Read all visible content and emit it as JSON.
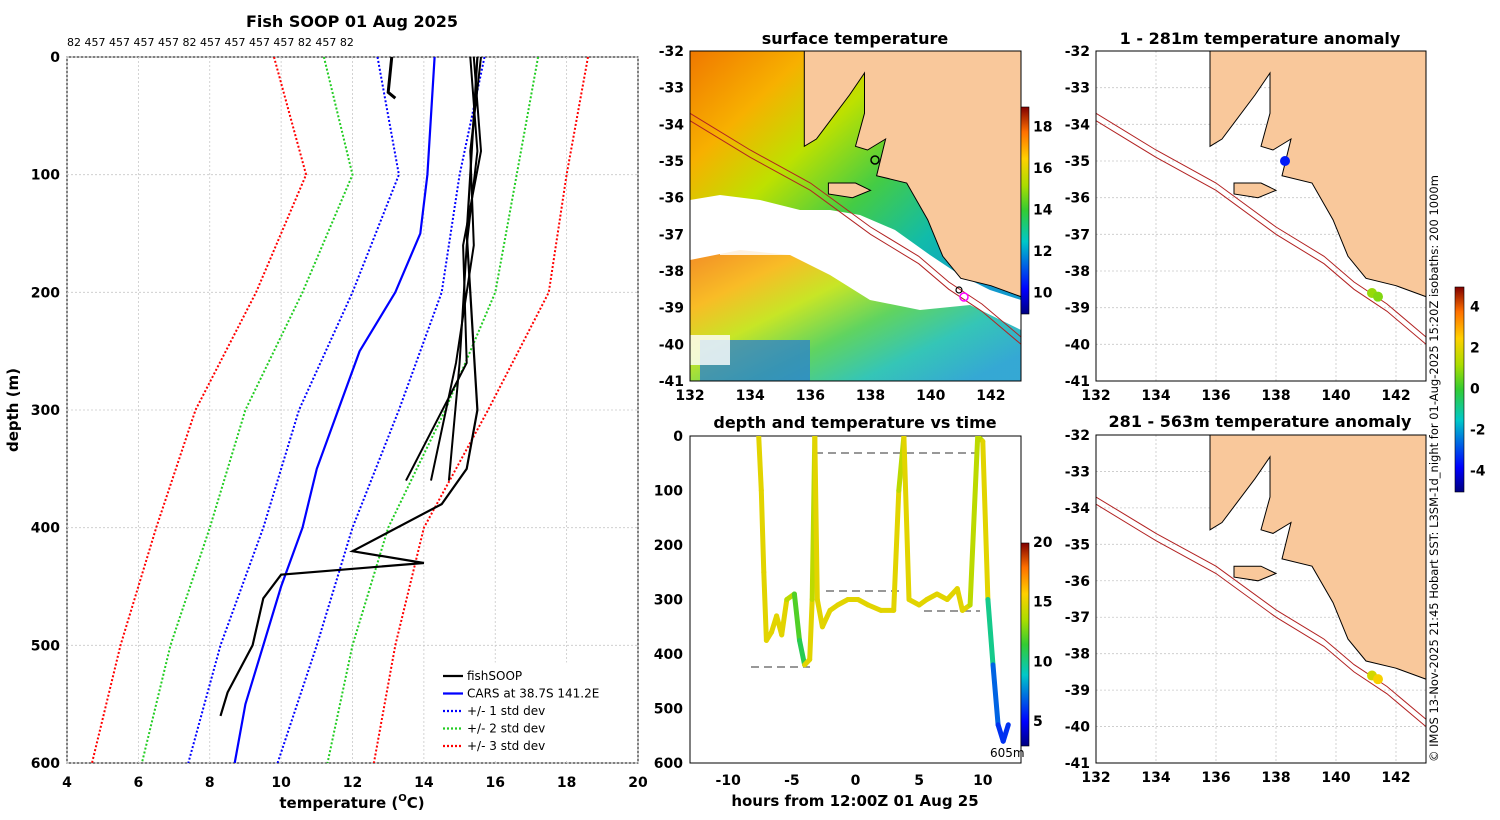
{
  "profile": {
    "title": "Fish SOOP 01 Aug 2025",
    "top_labels": "82 457 457 457 457 82 457 457 457 457 82 457 82",
    "xlabel_main": "temperature (",
    "xlabel_sup": "O",
    "xlabel_end": "C)",
    "ylabel": "depth (m)",
    "xticks": [
      "4",
      "6",
      "8",
      "10",
      "12",
      "14",
      "16",
      "18",
      "20"
    ],
    "yticks": [
      "0",
      "100",
      "200",
      "300",
      "400",
      "500",
      "600"
    ],
    "xlim": [
      4,
      20
    ],
    "ylim": [
      0,
      600
    ],
    "legend": [
      {
        "label": "fishSOOP",
        "color": "#000000",
        "style": "solid"
      },
      {
        "label": "CARS at 38.7S 141.2E",
        "color": "#0000ff",
        "style": "solid"
      },
      {
        "label": "+/- 1 std dev",
        "color": "#0000ff",
        "style": "dotted"
      },
      {
        "label": "+/- 2 std dev",
        "color": "#22cc22",
        "style": "dotted"
      },
      {
        "label": "+/- 3 std dev",
        "color": "#ff0000",
        "style": "dotted"
      }
    ]
  },
  "chart_data": [
    {
      "type": "line",
      "title": "Fish SOOP 01 Aug 2025",
      "xlabel": "temperature (oC)",
      "ylabel": "depth (m)",
      "xlim": [
        4,
        20
      ],
      "ylim": [
        600,
        0
      ],
      "series": [
        {
          "name": "CARS at 38.7S 141.2E",
          "color": "#0000ff",
          "style": "solid",
          "depth": [
            0,
            50,
            100,
            150,
            200,
            250,
            300,
            350,
            400,
            450,
            500,
            550,
            600
          ],
          "temp": [
            14.3,
            14.2,
            14.1,
            13.9,
            13.2,
            12.2,
            11.6,
            11.0,
            10.6,
            10.0,
            9.5,
            9.0,
            8.7
          ]
        },
        {
          "name": "-1 std dev",
          "color": "#0000ff",
          "style": "dotted",
          "depth": [
            0,
            100,
            200,
            300,
            400,
            500,
            600
          ],
          "temp": [
            12.7,
            13.3,
            12.0,
            10.5,
            9.5,
            8.3,
            7.4
          ]
        },
        {
          "name": "+1 std dev",
          "color": "#0000ff",
          "style": "dotted",
          "depth": [
            0,
            100,
            200,
            300,
            400,
            500,
            600
          ],
          "temp": [
            15.7,
            15.0,
            14.5,
            13.3,
            12.0,
            11.0,
            9.9
          ]
        },
        {
          "name": "-2 std dev",
          "color": "#22cc22",
          "style": "dotted",
          "depth": [
            0,
            100,
            200,
            300,
            400,
            500,
            600
          ],
          "temp": [
            11.2,
            12.0,
            10.6,
            9.0,
            8.0,
            6.9,
            6.1
          ]
        },
        {
          "name": "+2 std dev",
          "color": "#22cc22",
          "style": "dotted",
          "depth": [
            0,
            100,
            200,
            300,
            400,
            500,
            600
          ],
          "temp": [
            17.2,
            16.6,
            16.0,
            14.6,
            13.0,
            12.0,
            11.3
          ]
        },
        {
          "name": "-3 std dev",
          "color": "#ff0000",
          "style": "dotted",
          "depth": [
            0,
            100,
            200,
            300,
            400,
            500,
            600
          ],
          "temp": [
            9.8,
            10.7,
            9.3,
            7.6,
            6.5,
            5.5,
            4.7
          ]
        },
        {
          "name": "+3 std dev",
          "color": "#ff0000",
          "style": "dotted",
          "depth": [
            0,
            100,
            200,
            300,
            400,
            500,
            600
          ],
          "temp": [
            18.6,
            18.0,
            17.5,
            15.8,
            14.0,
            13.2,
            12.6
          ]
        },
        {
          "name": "fishSOOP",
          "color": "#000000",
          "style": "solid",
          "depth": [
            0,
            50,
            100,
            150,
            200,
            250,
            300,
            350,
            380,
            420,
            430,
            440,
            460,
            500,
            540,
            560
          ],
          "temp": [
            15.5,
            15.4,
            15.3,
            15.2,
            15.3,
            15.4,
            15.5,
            15.2,
            14.5,
            12.0,
            14.0,
            10.0,
            9.5,
            9.2,
            8.5,
            8.3
          ]
        }
      ]
    },
    {
      "type": "heatmap",
      "title": "surface temperature",
      "xticks": [
        "132",
        "134",
        "136",
        "138",
        "140",
        "142"
      ],
      "yticks": [
        "-32",
        "-33",
        "-34",
        "-35",
        "-36",
        "-37",
        "-38",
        "-39",
        "-40",
        "-41"
      ],
      "xlim": [
        132,
        143
      ],
      "ylim": [
        -41,
        -32
      ],
      "colorbar": {
        "ticks": [
          "10",
          "12",
          "14",
          "16",
          "18"
        ],
        "range": [
          9,
          19
        ]
      }
    },
    {
      "type": "scatter",
      "title": "depth and temperature vs time",
      "xlabel": "hours from 12:00Z 01 Aug 25",
      "xticks": [
        "-10",
        "-5",
        "0",
        "5",
        "10"
      ],
      "yticks": [
        "0",
        "100",
        "200",
        "300",
        "400",
        "500",
        "600"
      ],
      "xlim": [
        -13,
        13
      ],
      "ylim": [
        600,
        0
      ],
      "max_depth_label": "605m",
      "colorbar": {
        "ticks": [
          "5",
          "10",
          "15",
          "20"
        ],
        "range": [
          3,
          20
        ]
      },
      "track_hours": [
        -7.6,
        -7.4,
        -7.2,
        -7.0,
        -6.6,
        -6.2,
        -5.8,
        -5.4,
        -4.8,
        -4.4,
        -4.0,
        -3.6,
        -3.4,
        -3.2,
        -3.0,
        -2.6,
        -2.0,
        -1.4,
        -0.6,
        0.2,
        1.0,
        2.0,
        3.0,
        3.4,
        3.8,
        4.2,
        5.0,
        5.6,
        6.4,
        7.2,
        8.0,
        8.4,
        9.0,
        9.6,
        10.0,
        10.4,
        10.8,
        11.2,
        11.6,
        12.0
      ],
      "track_depth": [
        0,
        100,
        250,
        375,
        360,
        330,
        365,
        300,
        290,
        375,
        420,
        410,
        300,
        0,
        300,
        350,
        320,
        310,
        300,
        300,
        310,
        320,
        320,
        100,
        0,
        300,
        310,
        300,
        290,
        300,
        280,
        320,
        310,
        0,
        10,
        300,
        420,
        530,
        560,
        530
      ],
      "track_temp": [
        15,
        15,
        15,
        15,
        15,
        15,
        15,
        15,
        14,
        12,
        11,
        15,
        15,
        14,
        15,
        15,
        15,
        15,
        15,
        15,
        15,
        15,
        15,
        15,
        14,
        15,
        15,
        15,
        15,
        15,
        15,
        15,
        15,
        14,
        14,
        15,
        10,
        7,
        6,
        6
      ]
    },
    {
      "type": "scatter",
      "title": "1 - 281m temperature anomaly",
      "xticks": [
        "132",
        "134",
        "136",
        "138",
        "140",
        "142"
      ],
      "yticks": [
        "-32",
        "-33",
        "-34",
        "-35",
        "-36",
        "-37",
        "-38",
        "-39",
        "-40",
        "-41"
      ],
      "points": [
        {
          "lon": 138.3,
          "lat": -35.0,
          "anomaly": -3.5
        },
        {
          "lon": 141.2,
          "lat": -38.6,
          "anomaly": 1.0
        },
        {
          "lon": 141.4,
          "lat": -38.7,
          "anomaly": 0.8
        }
      ]
    },
    {
      "type": "scatter",
      "title": "281 - 563m temperature anomaly",
      "xticks": [
        "132",
        "134",
        "136",
        "138",
        "140",
        "142"
      ],
      "yticks": [
        "-32",
        "-33",
        "-34",
        "-35",
        "-36",
        "-37",
        "-38",
        "-39",
        "-40",
        "-41"
      ],
      "points": [
        {
          "lon": 141.2,
          "lat": -38.6,
          "anomaly": 1.8
        },
        {
          "lon": 141.4,
          "lat": -38.7,
          "anomaly": 2.4
        }
      ],
      "colorbar": {
        "ticks": [
          "-4",
          "-2",
          "0",
          "2",
          "4"
        ],
        "range": [
          -5,
          5
        ]
      }
    }
  ],
  "maps": {
    "sst_title": "surface temperature",
    "dt_title": "depth and temperature vs time",
    "dt_xlabel": "hours from 12:00Z 01 Aug 25",
    "dt_maxdepth": "605m",
    "anom1_title": "1 - 281m temperature anomaly",
    "anom2_title": "281 - 563m temperature anomaly",
    "credit": "© IMOS 13-Nov-2025 21:45 Hobart SST: L3SM-1d_night for 01-Aug-2025 15:20Z isobaths: 200  1000m"
  },
  "colors": {
    "land": "#f9c89b",
    "ocean_fill": "#ffffff",
    "isobath": "#b22222"
  }
}
